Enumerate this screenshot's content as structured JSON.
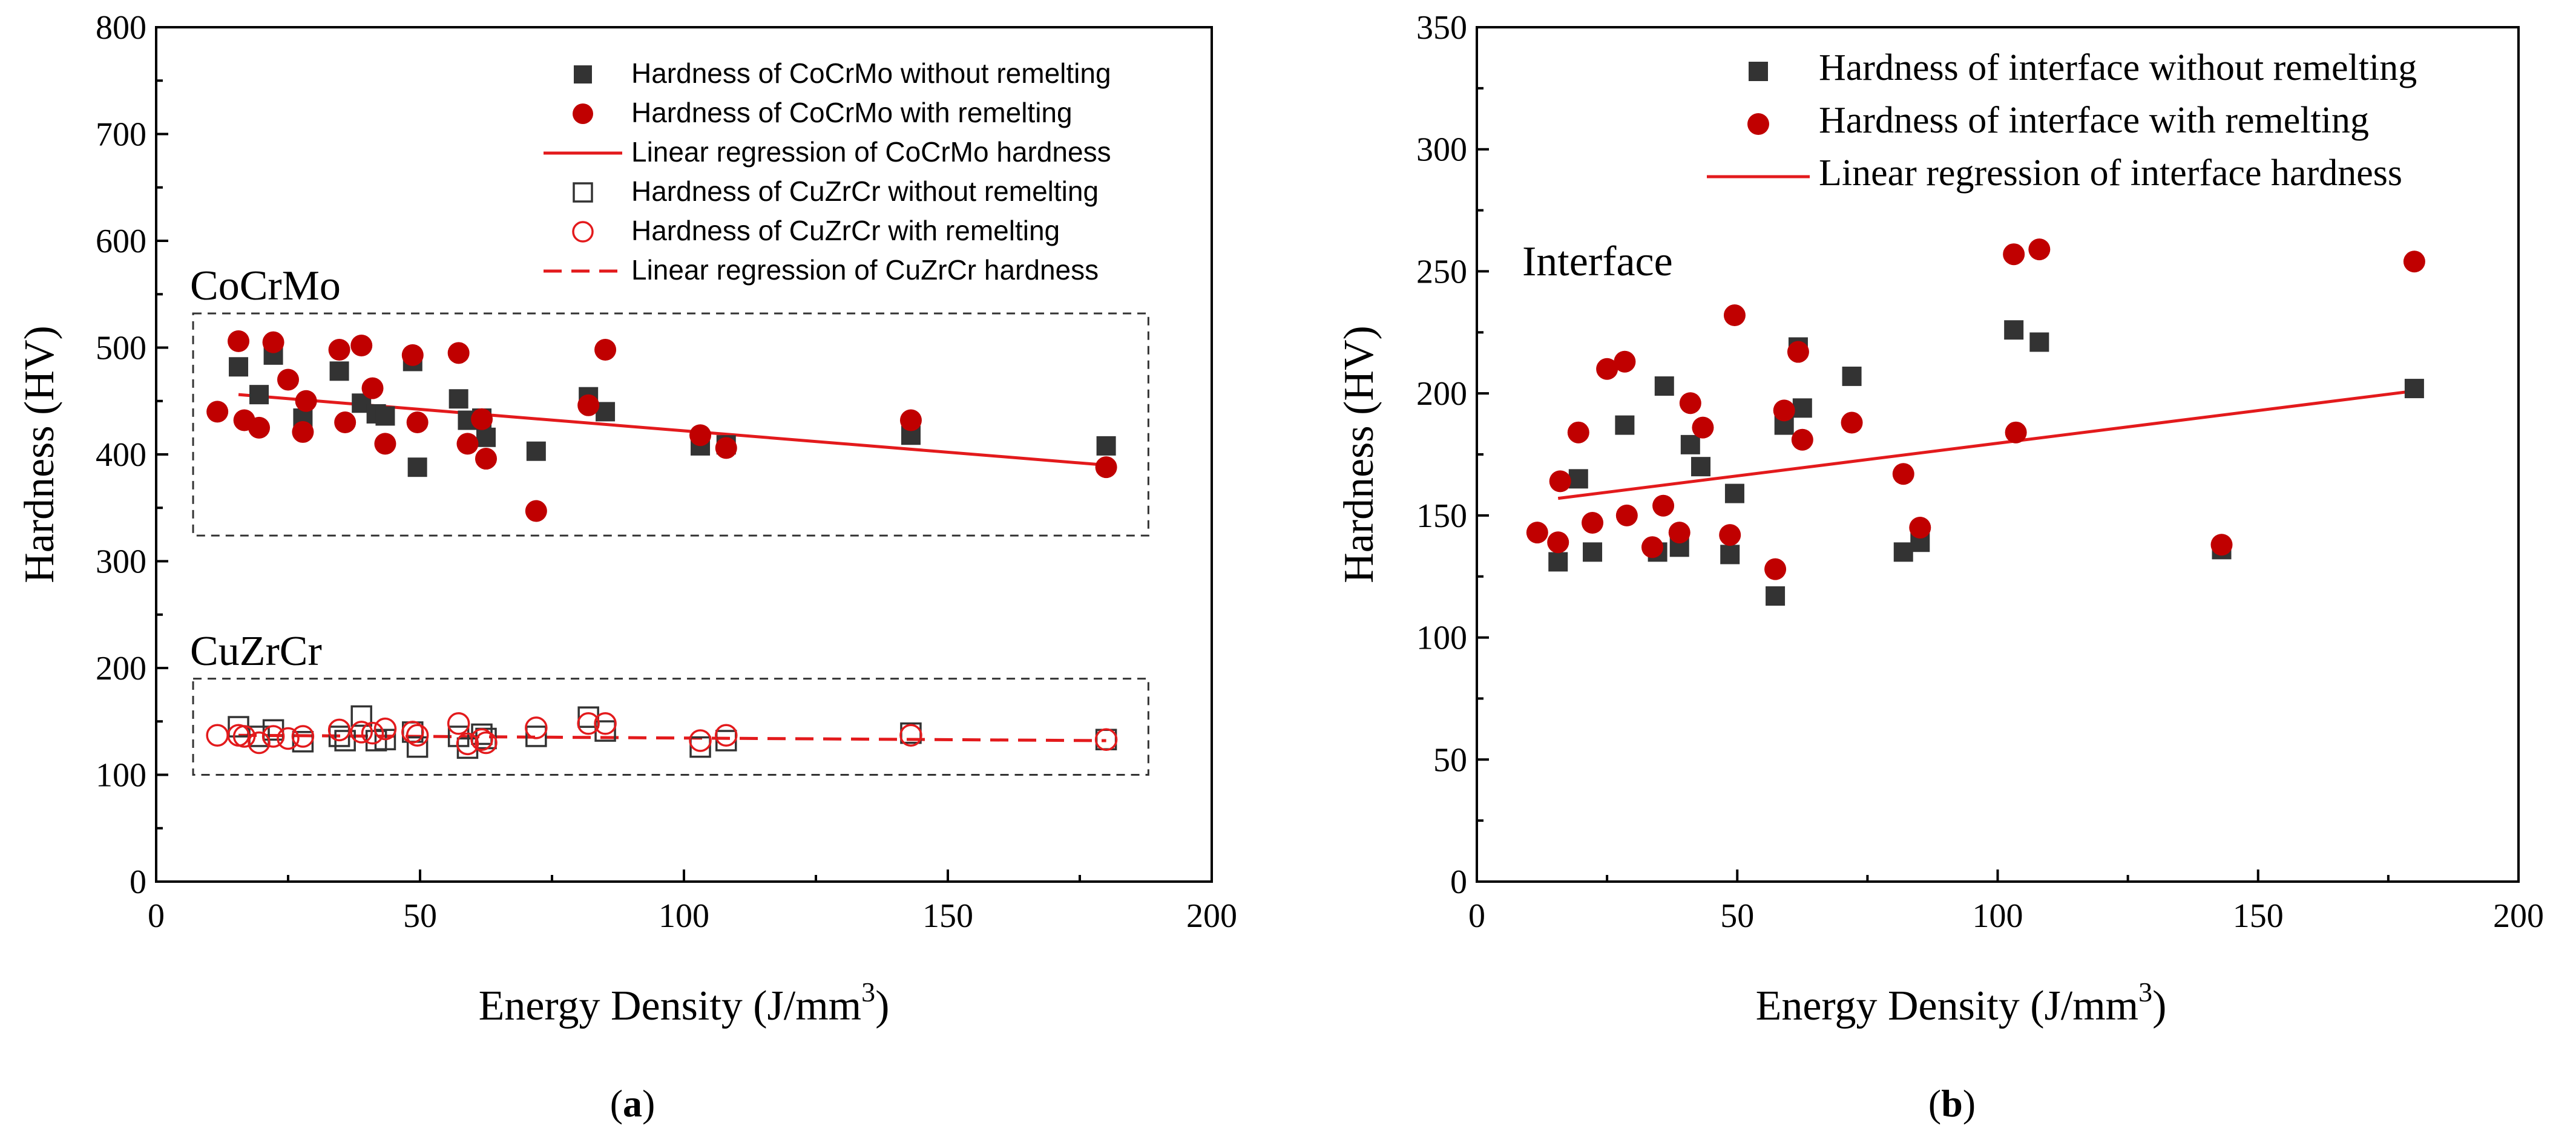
{
  "chart_data": [
    {
      "type": "scatter",
      "panel_label": "(a)",
      "panel_letter": "a",
      "xlabel": "Energy Density (J/mm3)",
      "xlabel_main": "Energy Density (J/mm",
      "xlabel_sup": "3",
      "xlabel_close": ")",
      "ylabel": "Hardness (HV)",
      "xlim": [
        0,
        200
      ],
      "ylim": [
        0,
        800
      ],
      "xticks": [
        "0",
        "50",
        "100",
        "150",
        "200"
      ],
      "yticks": [
        "0",
        "100",
        "200",
        "300",
        "400",
        "500",
        "600",
        "700",
        "800"
      ],
      "xtick_values": [
        0,
        50,
        100,
        150,
        200
      ],
      "ytick_values": [
        0,
        100,
        200,
        300,
        400,
        500,
        600,
        700,
        800
      ],
      "legend_position": "top-right",
      "annotations": [
        {
          "text": "CoCrMo",
          "x": 7,
          "y": 563
        },
        {
          "text": "CuZrCr",
          "x": 7,
          "y": 205
        }
      ],
      "region_boxes": [
        {
          "x0": 7,
          "x1": 188,
          "y0": 324,
          "y1": 532
        },
        {
          "x0": 7,
          "x1": 188,
          "y0": 100,
          "y1": 190
        }
      ],
      "series": [
        {
          "name": "Hardness of CoCrMo without remelting",
          "marker": "filled-square",
          "color": "#333333",
          "x": [
            15.6,
            19.5,
            22.2,
            27.8,
            34.7,
            38.9,
            41.7,
            43.4,
            48.6,
            49.5,
            57.3,
            59.0,
            61.7,
            62.5,
            72.0,
            81.9,
            85.1,
            103.1,
            108.0,
            143.0,
            180.0
          ],
          "y": [
            482,
            456,
            493,
            434,
            478,
            448,
            438,
            436,
            487,
            388,
            452,
            432,
            434,
            416,
            403,
            454,
            440,
            408,
            409,
            418,
            408
          ]
        },
        {
          "name": "Hardness of CoCrMo with remelting",
          "marker": "filled-circle",
          "color": "#c00000",
          "x": [
            11.6,
            15.6,
            16.7,
            19.5,
            22.2,
            25.0,
            27.8,
            28.4,
            34.7,
            35.8,
            38.9,
            41.0,
            43.4,
            48.6,
            49.5,
            57.3,
            59.0,
            61.7,
            62.5,
            72.0,
            81.9,
            85.1,
            103.1,
            108.0,
            143.0,
            180.0
          ],
          "y": [
            440,
            506,
            432,
            425,
            505,
            470,
            421,
            450,
            498,
            430,
            502,
            462,
            410,
            493,
            430,
            495,
            410,
            433,
            396,
            347,
            446,
            498,
            418,
            406,
            432,
            388
          ]
        },
        {
          "name": "Linear regression of CoCrMo hardness",
          "style": "solid-line",
          "color": "#e31a1c",
          "x": [
            15.6,
            180.0
          ],
          "y": [
            456,
            390
          ]
        },
        {
          "name": "Hardness of CuZrCr without remelting",
          "marker": "open-square",
          "color": "#333333",
          "x": [
            15.6,
            19.5,
            22.2,
            27.8,
            34.7,
            35.8,
            38.9,
            41.7,
            43.4,
            48.6,
            49.5,
            57.3,
            59.0,
            61.7,
            62.5,
            72.0,
            81.9,
            85.1,
            103.1,
            108.0,
            143.0,
            180.0
          ],
          "y": [
            145,
            136,
            142,
            131,
            136,
            132,
            155,
            132,
            133,
            140,
            126,
            136,
            125,
            138,
            134,
            136,
            154,
            141,
            126,
            132,
            139,
            133
          ]
        },
        {
          "name": "Hardness of CuZrCr with remelting",
          "marker": "open-circle",
          "color": "#e31a1c",
          "x": [
            11.6,
            15.6,
            16.7,
            19.5,
            22.2,
            25.0,
            27.8,
            34.7,
            38.9,
            41.0,
            43.4,
            48.6,
            49.5,
            57.3,
            59.0,
            61.7,
            62.5,
            72.0,
            81.9,
            85.1,
            103.1,
            108.0,
            143.0,
            180.0
          ],
          "y": [
            137,
            137,
            136,
            130,
            136,
            134,
            136,
            142,
            140,
            139,
            143,
            140,
            137,
            148,
            129,
            133,
            130,
            144,
            148,
            148,
            132,
            137,
            137,
            133
          ]
        },
        {
          "name": "Linear regression of CuZrCr hardness",
          "style": "dashed-line",
          "color": "#e31a1c",
          "x": [
            15.6,
            180.0
          ],
          "y": [
            137,
            132
          ]
        }
      ]
    },
    {
      "type": "scatter",
      "panel_label": "(b)",
      "panel_letter": "b",
      "xlabel": "Energy Density (J/mm3)",
      "xlabel_main": "Energy Density (J/mm",
      "xlabel_sup": "3",
      "xlabel_close": ")",
      "ylabel": "Hardness (HV)",
      "xlim": [
        0,
        200
      ],
      "ylim": [
        0,
        350
      ],
      "xticks": [
        "0",
        "50",
        "100",
        "150",
        "200"
      ],
      "yticks": [
        "0",
        "50",
        "100",
        "150",
        "200",
        "250",
        "300",
        "350"
      ],
      "xtick_values": [
        0,
        50,
        100,
        150,
        200
      ],
      "ytick_values": [
        0,
        50,
        100,
        150,
        200,
        250,
        300,
        350
      ],
      "legend_position": "top-right",
      "annotations": [
        {
          "text": "Interface",
          "x": 9,
          "y": 250
        }
      ],
      "series": [
        {
          "name": "Hardness of interface without remelting",
          "marker": "filled-square",
          "color": "#333333",
          "x": [
            15.6,
            19.5,
            22.2,
            28.4,
            34.7,
            36.0,
            38.9,
            41.0,
            43.0,
            48.6,
            49.5,
            57.3,
            59.0,
            61.7,
            62.5,
            72.0,
            81.9,
            85.1,
            103.1,
            108.0,
            143.0,
            180.0
          ],
          "y": [
            131,
            165,
            135,
            187,
            135,
            203,
            137,
            179,
            170,
            134,
            159,
            117,
            187,
            219,
            194,
            207,
            135,
            139,
            226,
            221,
            136,
            202
          ]
        },
        {
          "name": "Hardness of interface with remelting",
          "marker": "filled-circle",
          "color": "#c00000",
          "x": [
            11.6,
            15.6,
            16.0,
            19.5,
            22.2,
            25.0,
            28.4,
            28.8,
            33.7,
            35.8,
            38.9,
            41.0,
            43.4,
            48.6,
            49.5,
            57.3,
            59.0,
            61.7,
            62.5,
            72.0,
            81.9,
            85.1,
            103.1,
            103.5,
            108.0,
            143.0,
            180.0
          ],
          "y": [
            143,
            139,
            164,
            184,
            147,
            210,
            213,
            150,
            137,
            154,
            143,
            196,
            186,
            142,
            232,
            128,
            193,
            217,
            181,
            188,
            167,
            145,
            257,
            184,
            259,
            138,
            254
          ]
        },
        {
          "name": "Linear regression of interface hardness",
          "style": "solid-line",
          "color": "#e31a1c",
          "x": [
            15.6,
            180.0
          ],
          "y": [
            157,
            201
          ]
        }
      ]
    }
  ]
}
